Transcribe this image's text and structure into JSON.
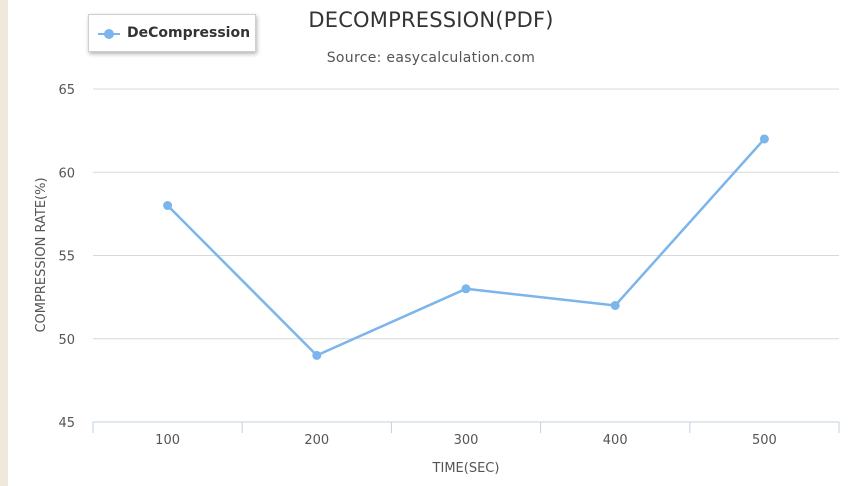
{
  "chart_data": {
    "type": "line",
    "title": "DECOMPRESSION(PDF)",
    "subtitle": "Source: easycalculation.com",
    "xlabel": "TIME(SEC)",
    "ylabel": "COMPRESSION RATE(%)",
    "categories": [
      "100",
      "200",
      "300",
      "400",
      "500"
    ],
    "series": [
      {
        "name": "DeCompression",
        "values": [
          58,
          49,
          53,
          52,
          62
        ],
        "color": "#7cb5ec"
      }
    ],
    "ylim": [
      45,
      65
    ],
    "yticks": [
      45,
      50,
      55,
      60,
      65
    ],
    "grid": true,
    "legend_position": "top-left"
  }
}
